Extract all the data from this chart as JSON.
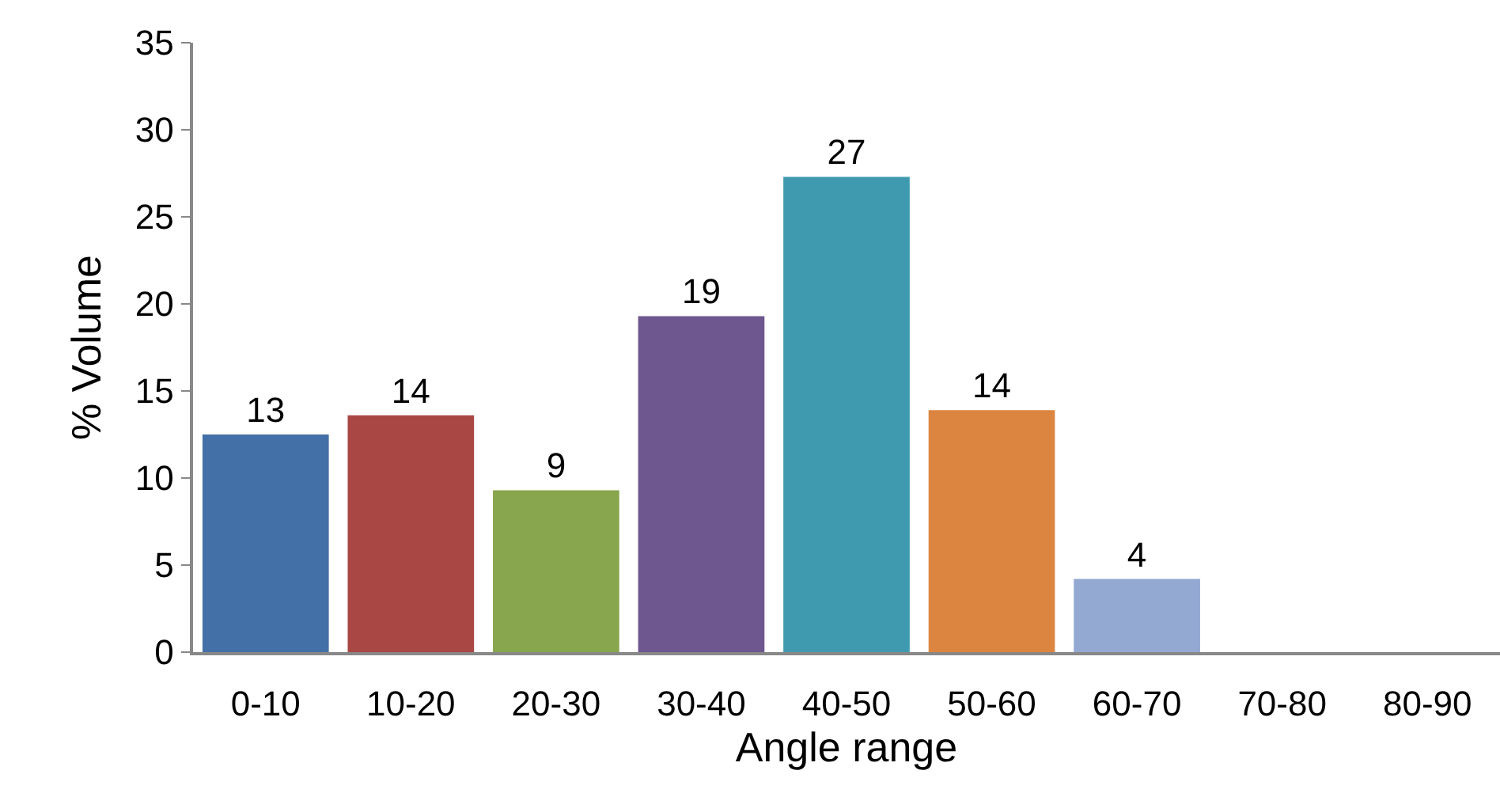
{
  "chart_data": {
    "type": "bar",
    "xlabel": "Angle range",
    "ylabel": "% Volume",
    "categories": [
      "0-10",
      "10-20",
      "20-30",
      "30-40",
      "40-50",
      "50-60",
      "60-70",
      "70-80",
      "80-90"
    ],
    "values": [
      12.5,
      13.6,
      9.3,
      19.3,
      27.3,
      13.9,
      4.2,
      0,
      0
    ],
    "value_labels": [
      "13",
      "14",
      "9",
      "19",
      "27",
      "14",
      "4",
      null,
      null
    ],
    "colors": [
      "#4470a8",
      "#a94744",
      "#87a64d",
      "#6e568e",
      "#3f9ab0",
      "#dc8540",
      "#93a9d2",
      "#93a9d2",
      "#93a9d2"
    ],
    "ylim": [
      0,
      35
    ],
    "yticks": [
      0,
      5,
      10,
      15,
      20,
      25,
      30,
      35
    ],
    "grid": false,
    "legend": false
  }
}
